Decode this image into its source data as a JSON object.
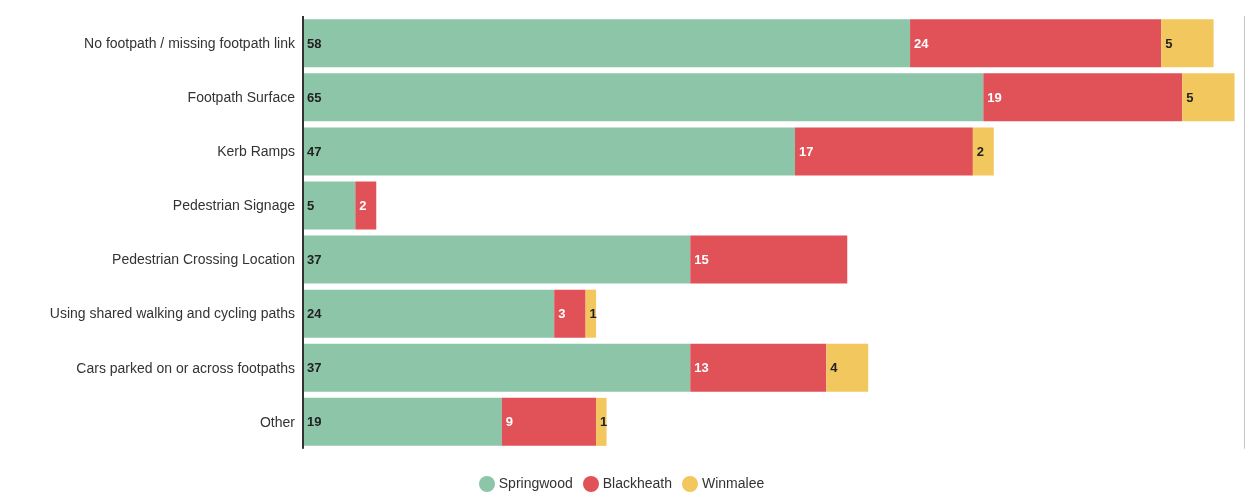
{
  "chart_data": {
    "type": "bar",
    "orientation": "horizontal",
    "stacked": true,
    "categories": [
      "No footpath / missing footpath link",
      "Footpath Surface",
      "Kerb Ramps",
      "Pedestrian Signage",
      "Pedestrian Crossing Location",
      "Using shared walking and cycling paths",
      "Cars parked on or across footpaths",
      "Other"
    ],
    "series": [
      {
        "name": "Springwood",
        "color": "#8dc5a8",
        "values": [
          58,
          65,
          47,
          5,
          37,
          24,
          37,
          19
        ]
      },
      {
        "name": "Blackheath",
        "color": "#e05257",
        "values": [
          24,
          19,
          17,
          2,
          15,
          3,
          13,
          9
        ]
      },
      {
        "name": "Winmalee",
        "color": "#f2c75e",
        "values": [
          5,
          5,
          2,
          null,
          null,
          1,
          4,
          1
        ]
      }
    ],
    "xlim": [
      0,
      90
    ],
    "grid": "x",
    "tick_labels": "y",
    "data_labels": true,
    "legend": "bottom"
  }
}
